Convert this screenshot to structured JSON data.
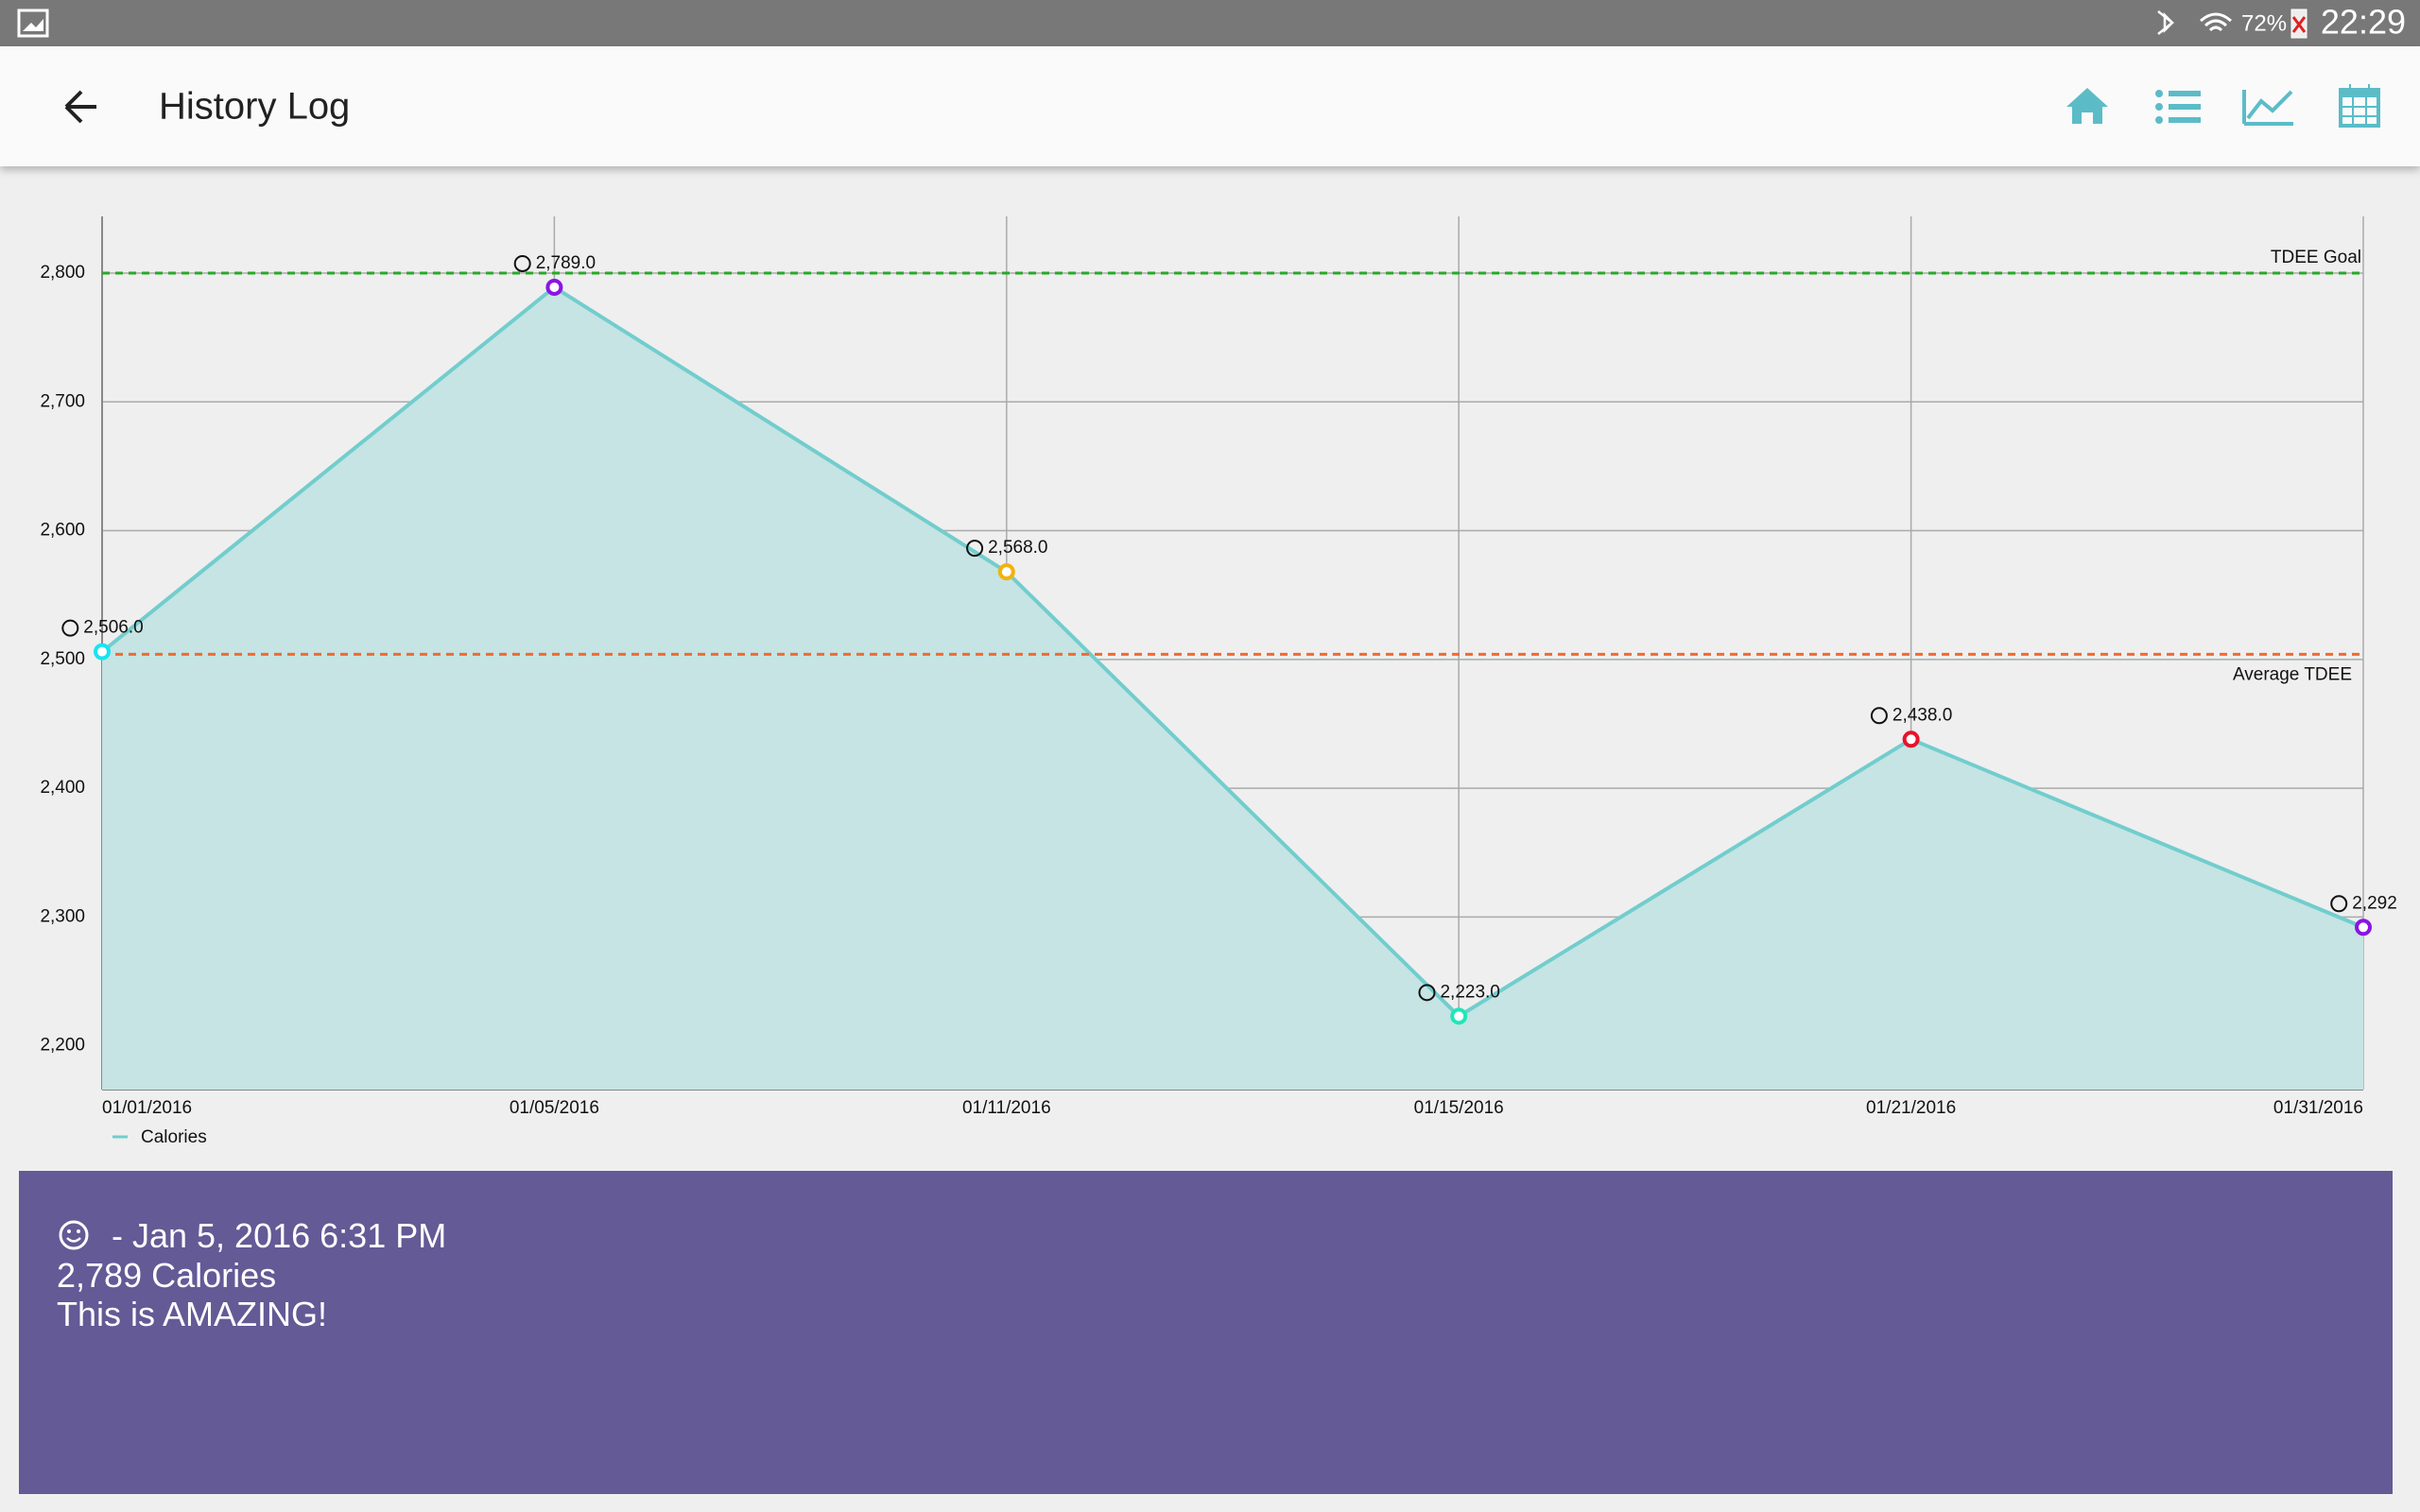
{
  "status_bar": {
    "battery": "72%",
    "time": "22:29"
  },
  "app_bar": {
    "title": "History Log"
  },
  "chart_data": {
    "type": "line",
    "categories": [
      "01/01/2016",
      "01/05/2016",
      "01/11/2016",
      "01/15/2016",
      "01/21/2016",
      "01/31/2016"
    ],
    "series": [
      {
        "name": "Calories",
        "color": "#72cdcd",
        "fill_color": "#c5e4e3",
        "values": [
          2506,
          2789,
          2568,
          2223,
          2438,
          2292
        ],
        "value_labels": [
          "2,506.0",
          "2,789.0",
          "2,568.0",
          "2,223.0",
          "2,438.0",
          "2,292"
        ],
        "point_colors": [
          "#19e4ee",
          "#8a14e6",
          "#f2b20f",
          "#1ee8b8",
          "#e8132a",
          "#8a14e6"
        ]
      }
    ],
    "reference_lines": [
      {
        "label": "TDEE Goal",
        "value": 2800,
        "color": "#2aa82a"
      },
      {
        "label": "Average TDEE",
        "value": 2504,
        "color": "#f06a32"
      }
    ],
    "ylim": [
      2166,
      2844
    ],
    "yticks": [
      {
        "value": 2200,
        "label": "2,200"
      },
      {
        "value": 2300,
        "label": "2,300"
      },
      {
        "value": 2400,
        "label": "2,400"
      },
      {
        "value": 2500,
        "label": "2,500"
      },
      {
        "value": 2600,
        "label": "2,600"
      },
      {
        "value": 2700,
        "label": "2,700"
      },
      {
        "value": 2800,
        "label": "2,800"
      }
    ],
    "grid": true
  },
  "detail": {
    "lines": [
      "- Jan 5, 2016 6:31 PM",
      "2,789 Calories",
      "This is AMAZING!"
    ]
  }
}
